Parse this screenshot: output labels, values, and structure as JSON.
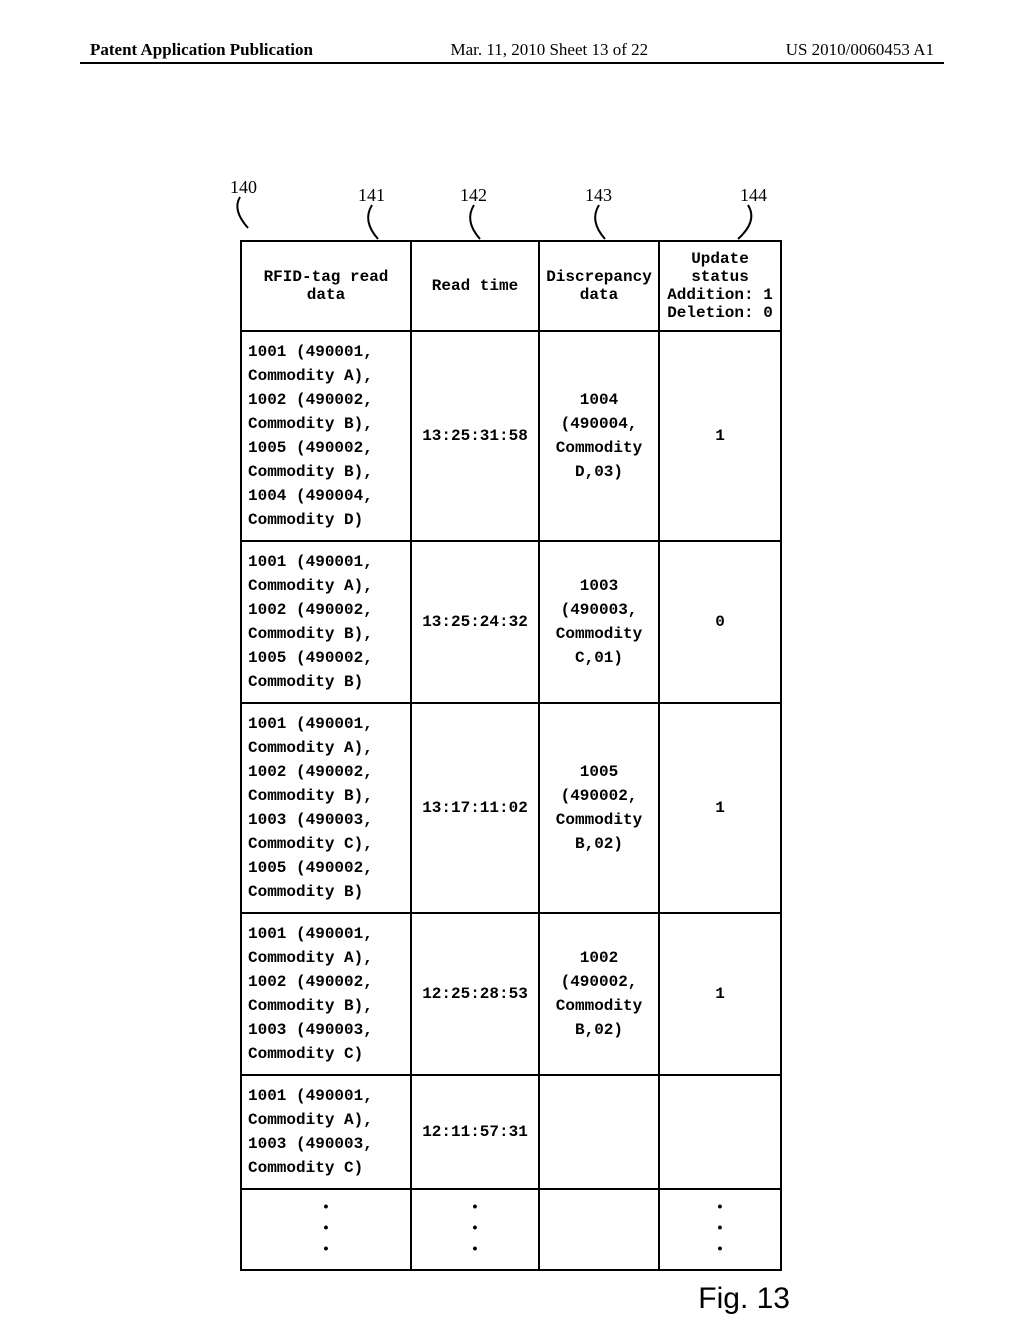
{
  "header": {
    "left": "Patent Application Publication",
    "mid": "Mar. 11, 2010  Sheet 13 of 22",
    "right": "US 2010/0060453 A1"
  },
  "callouts": {
    "c140": "140",
    "c141": "141",
    "c142": "142",
    "c143": "143",
    "c144": "144"
  },
  "table": {
    "headers": {
      "h1": "RFID-tag read data",
      "h2": "Read time",
      "h3": "Discrepancy data",
      "h4_l1": "Update",
      "h4_l2": "status",
      "h4_l3": "Addition: 1",
      "h4_l4": "Deletion: 0"
    },
    "rows": [
      {
        "rfid": [
          "1001 (490001,",
          "Commodity A),",
          "1002 (490002,",
          "Commodity B),",
          "1005 (490002,",
          "Commodity B),",
          "1004 (490004,",
          "Commodity D)"
        ],
        "time": "13:25:31:58",
        "disc": [
          "1004",
          "(490004,",
          "Commodity",
          "D,03)"
        ],
        "status": "1"
      },
      {
        "rfid": [
          "1001  (490001,",
          "Commodity A),",
          "1002 (490002,",
          "Commodity B),",
          "1005 (490002,",
          "Commodity B)"
        ],
        "time": "13:25:24:32",
        "disc": [
          "1003",
          "(490003,",
          "Commodity",
          "C,01)"
        ],
        "status": "0"
      },
      {
        "rfid": [
          "1001 (490001,",
          "Commodity A),",
          "1002 (490002,",
          "Commodity B),",
          "1003 (490003,",
          "Commodity C),",
          "1005 (490002,",
          "Commodity B)"
        ],
        "time": "13:17:11:02",
        "disc": [
          "1005",
          "(490002,",
          "Commodity",
          "B,02)"
        ],
        "status": "1"
      },
      {
        "rfid": [
          "1001 (490001,",
          "Commodity A),",
          "1002 (490002,",
          "Commodity B),",
          "1003 (490003,",
          "Commodity C)"
        ],
        "time": "12:25:28:53",
        "disc": [
          "1002",
          "(490002,",
          "Commodity",
          "B,02)"
        ],
        "status": "1"
      },
      {
        "rfid": [
          "1001 (490001,",
          "Commodity A),",
          "1003 (490003,",
          "Commodity C)"
        ],
        "time": "12:11:57:31",
        "disc": [],
        "status": ""
      }
    ]
  },
  "figure_label": "Fig. 13",
  "colors": {
    "border": "#000000",
    "text": "#000000",
    "bg": "#ffffff"
  }
}
